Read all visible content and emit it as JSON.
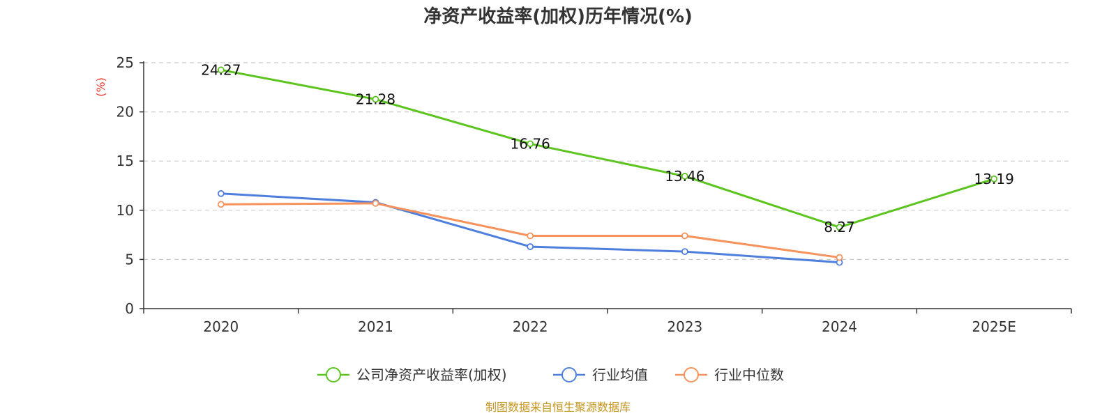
{
  "chart_data": {
    "type": "line",
    "title": "净资产收益率(加权)历年情况(%)",
    "ylabel": "(%)",
    "xlabel": "",
    "categories": [
      "2020",
      "2021",
      "2022",
      "2023",
      "2024",
      "2025E"
    ],
    "ylim": [
      0,
      25
    ],
    "yticks": [
      0,
      5,
      10,
      15,
      20,
      25
    ],
    "grid": true,
    "legend_position": "bottom",
    "series": [
      {
        "name": "公司净资产收益率(加权)",
        "color": "#5cc41f",
        "values": [
          24.27,
          21.28,
          16.76,
          13.46,
          8.27,
          13.19
        ],
        "labels": [
          "24.27",
          "21.28",
          "16.76",
          "13.46",
          "8.27",
          "13.19"
        ]
      },
      {
        "name": "行业均值",
        "color": "#4f7fdd",
        "values": [
          11.7,
          10.8,
          6.3,
          5.8,
          4.7,
          null
        ]
      },
      {
        "name": "行业中位数",
        "color": "#f6935c",
        "values": [
          10.6,
          10.7,
          7.4,
          7.4,
          5.2,
          null
        ]
      }
    ],
    "source": "制图数据来自恒生聚源数据库"
  }
}
